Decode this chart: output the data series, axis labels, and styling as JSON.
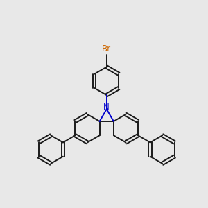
{
  "bg": "#e8e8e8",
  "bc": "#1a1a1a",
  "nc": "#0000cc",
  "brc": "#cc6600",
  "lw": 1.4,
  "dbl_sep": 0.055,
  "figsize": [
    3.0,
    3.0
  ],
  "dpi": 100
}
